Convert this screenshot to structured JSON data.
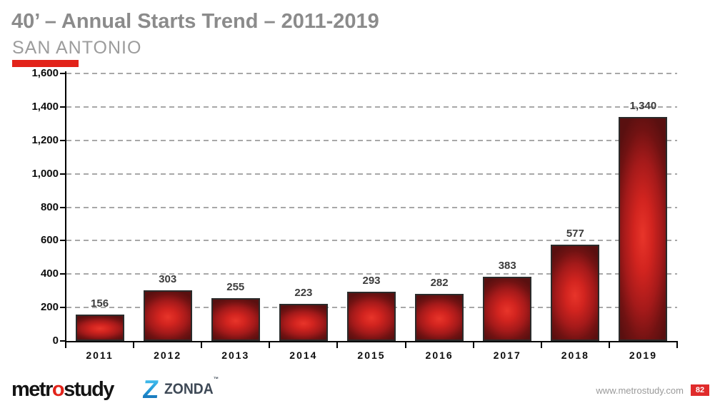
{
  "header": {
    "title": "40’ – Annual Starts Trend – 2011-2019",
    "subtitle": "SAN ANTONIO",
    "accent_color": "#e2231a"
  },
  "chart_data": {
    "type": "bar",
    "categories": [
      "2011",
      "2012",
      "2013",
      "2014",
      "2015",
      "2016",
      "2017",
      "2018",
      "2019"
    ],
    "values": [
      156,
      303,
      255,
      223,
      293,
      282,
      383,
      577,
      1340
    ],
    "value_labels": [
      "156",
      "303",
      "255",
      "223",
      "293",
      "282",
      "383",
      "577",
      "1,340"
    ],
    "title": "40’ – Annual Starts Trend – 2011-2019",
    "xlabel": "",
    "ylabel": "",
    "ylim": [
      0,
      1600
    ],
    "ytick_step": 200,
    "ytick_labels": [
      "0",
      "200",
      "400",
      "600",
      "800",
      "1,000",
      "1,200",
      "1,400",
      "1,600"
    ],
    "grid": "dashed horizontal",
    "legend": "none",
    "bar_center_color": "#d8271e",
    "bar_edge_color": "#591010",
    "bar_border_color": "#2b2b2b",
    "axis_color": "#000000",
    "gridline_color": "#a8a8a8"
  },
  "footer": {
    "metrostudy_logo": {
      "pre": "metr",
      "o": "o",
      "post": "study"
    },
    "zonda_logo": {
      "z": "Z",
      "text": "ZONDA",
      "tm": "™"
    },
    "website": "www.metrostudy.com",
    "page_number": "82",
    "badge_color": "#e02b2b"
  }
}
